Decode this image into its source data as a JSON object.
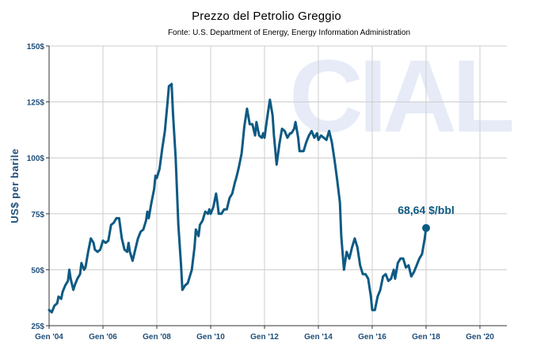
{
  "chart_data": {
    "type": "line",
    "title": "Prezzo del Petrolio Greggio",
    "subtitle": "Fonte: U.S. Department of Energy, Energy Information Administration",
    "ylabel": "US$ per barile",
    "xlabel": "",
    "watermark": "CIAL",
    "ylim": [
      25,
      150
    ],
    "xlim": [
      2004,
      2021
    ],
    "grid": true,
    "y_ticks": [
      {
        "value": 25,
        "label": "25$"
      },
      {
        "value": 50,
        "label": "50$"
      },
      {
        "value": 75,
        "label": "75$"
      },
      {
        "value": 100,
        "label": "100$"
      },
      {
        "value": 125,
        "label": "125$"
      },
      {
        "value": 150,
        "label": "150$"
      }
    ],
    "x_ticks": [
      {
        "value": 2004,
        "label": "Gen '04"
      },
      {
        "value": 2006,
        "label": "Gen '06"
      },
      {
        "value": 2008,
        "label": "Gen '08"
      },
      {
        "value": 2010,
        "label": "Gen '10"
      },
      {
        "value": 2012,
        "label": "Gen '12"
      },
      {
        "value": 2014,
        "label": "Gen '14"
      },
      {
        "value": 2016,
        "label": "Gen '16"
      },
      {
        "value": 2018,
        "label": "Gen '18"
      },
      {
        "value": 2020,
        "label": "Gen '20"
      }
    ],
    "annotation": {
      "text": "68,64 $/bbl",
      "x": 2018.0,
      "y": 68.64
    },
    "series": [
      {
        "color": "#0e5a83",
        "points": [
          [
            2004.0,
            32
          ],
          [
            2004.1,
            31
          ],
          [
            2004.2,
            34
          ],
          [
            2004.3,
            35
          ],
          [
            2004.35,
            38
          ],
          [
            2004.45,
            37
          ],
          [
            2004.5,
            40
          ],
          [
            2004.6,
            43
          ],
          [
            2004.7,
            45
          ],
          [
            2004.75,
            50
          ],
          [
            2004.8,
            46
          ],
          [
            2004.9,
            41
          ],
          [
            2004.95,
            43
          ],
          [
            2005.05,
            46
          ],
          [
            2005.15,
            48
          ],
          [
            2005.2,
            53
          ],
          [
            2005.3,
            50
          ],
          [
            2005.35,
            51
          ],
          [
            2005.45,
            58
          ],
          [
            2005.55,
            64
          ],
          [
            2005.65,
            62
          ],
          [
            2005.7,
            59
          ],
          [
            2005.8,
            58
          ],
          [
            2005.9,
            59
          ],
          [
            2006.0,
            63
          ],
          [
            2006.1,
            62
          ],
          [
            2006.2,
            63
          ],
          [
            2006.3,
            70
          ],
          [
            2006.4,
            71
          ],
          [
            2006.5,
            73
          ],
          [
            2006.6,
            73
          ],
          [
            2006.7,
            64
          ],
          [
            2006.8,
            59
          ],
          [
            2006.9,
            58
          ],
          [
            2006.95,
            62
          ],
          [
            2007.0,
            58
          ],
          [
            2007.1,
            54
          ],
          [
            2007.2,
            59
          ],
          [
            2007.3,
            64
          ],
          [
            2007.4,
            67
          ],
          [
            2007.5,
            68
          ],
          [
            2007.6,
            72
          ],
          [
            2007.65,
            76
          ],
          [
            2007.7,
            73
          ],
          [
            2007.8,
            80
          ],
          [
            2007.9,
            86
          ],
          [
            2007.95,
            92
          ],
          [
            2008.0,
            91
          ],
          [
            2008.1,
            95
          ],
          [
            2008.2,
            104
          ],
          [
            2008.3,
            112
          ],
          [
            2008.4,
            125
          ],
          [
            2008.45,
            132
          ],
          [
            2008.55,
            133
          ],
          [
            2008.6,
            120
          ],
          [
            2008.7,
            100
          ],
          [
            2008.8,
            70
          ],
          [
            2008.9,
            52
          ],
          [
            2008.95,
            41
          ],
          [
            2009.05,
            43
          ],
          [
            2009.15,
            44
          ],
          [
            2009.3,
            50
          ],
          [
            2009.4,
            60
          ],
          [
            2009.45,
            68
          ],
          [
            2009.55,
            65
          ],
          [
            2009.6,
            70
          ],
          [
            2009.7,
            72
          ],
          [
            2009.8,
            76
          ],
          [
            2009.9,
            75
          ],
          [
            2009.95,
            77
          ],
          [
            2010.0,
            75
          ],
          [
            2010.1,
            78
          ],
          [
            2010.2,
            84
          ],
          [
            2010.25,
            80
          ],
          [
            2010.3,
            75
          ],
          [
            2010.4,
            75
          ],
          [
            2010.5,
            77
          ],
          [
            2010.6,
            77
          ],
          [
            2010.7,
            82
          ],
          [
            2010.8,
            84
          ],
          [
            2010.9,
            89
          ],
          [
            2010.95,
            91
          ],
          [
            2011.05,
            96
          ],
          [
            2011.15,
            102
          ],
          [
            2011.25,
            114
          ],
          [
            2011.35,
            122
          ],
          [
            2011.45,
            115
          ],
          [
            2011.55,
            115
          ],
          [
            2011.65,
            110
          ],
          [
            2011.7,
            116
          ],
          [
            2011.8,
            110
          ],
          [
            2011.9,
            109
          ],
          [
            2011.95,
            111
          ],
          [
            2012.0,
            109
          ],
          [
            2012.1,
            118
          ],
          [
            2012.2,
            126
          ],
          [
            2012.3,
            119
          ],
          [
            2012.35,
            110
          ],
          [
            2012.45,
            97
          ],
          [
            2012.55,
            106
          ],
          [
            2012.65,
            113
          ],
          [
            2012.75,
            112
          ],
          [
            2012.85,
            109
          ],
          [
            2012.95,
            111
          ],
          [
            2013.0,
            111
          ],
          [
            2013.1,
            113
          ],
          [
            2013.15,
            116
          ],
          [
            2013.25,
            109
          ],
          [
            2013.3,
            103
          ],
          [
            2013.45,
            103
          ],
          [
            2013.55,
            107
          ],
          [
            2013.65,
            110
          ],
          [
            2013.75,
            112
          ],
          [
            2013.85,
            109
          ],
          [
            2013.95,
            111
          ],
          [
            2014.0,
            108
          ],
          [
            2014.1,
            110
          ],
          [
            2014.2,
            109
          ],
          [
            2014.3,
            108
          ],
          [
            2014.4,
            112
          ],
          [
            2014.5,
            107
          ],
          [
            2014.6,
            99
          ],
          [
            2014.7,
            90
          ],
          [
            2014.8,
            80
          ],
          [
            2014.85,
            65
          ],
          [
            2014.95,
            50
          ],
          [
            2015.05,
            58
          ],
          [
            2015.15,
            55
          ],
          [
            2015.25,
            60
          ],
          [
            2015.35,
            64
          ],
          [
            2015.45,
            60
          ],
          [
            2015.55,
            52
          ],
          [
            2015.65,
            48
          ],
          [
            2015.75,
            48
          ],
          [
            2015.85,
            46
          ],
          [
            2015.95,
            38
          ],
          [
            2016.0,
            32
          ],
          [
            2016.1,
            32
          ],
          [
            2016.2,
            38
          ],
          [
            2016.3,
            41
          ],
          [
            2016.4,
            47
          ],
          [
            2016.5,
            48
          ],
          [
            2016.6,
            45
          ],
          [
            2016.7,
            46
          ],
          [
            2016.8,
            50
          ],
          [
            2016.85,
            46
          ],
          [
            2016.95,
            53
          ],
          [
            2017.05,
            55
          ],
          [
            2017.15,
            55
          ],
          [
            2017.25,
            51
          ],
          [
            2017.35,
            52
          ],
          [
            2017.45,
            47
          ],
          [
            2017.55,
            49
          ],
          [
            2017.65,
            52
          ],
          [
            2017.75,
            55
          ],
          [
            2017.85,
            57
          ],
          [
            2017.95,
            64
          ],
          [
            2018.0,
            68.64
          ]
        ]
      }
    ]
  }
}
